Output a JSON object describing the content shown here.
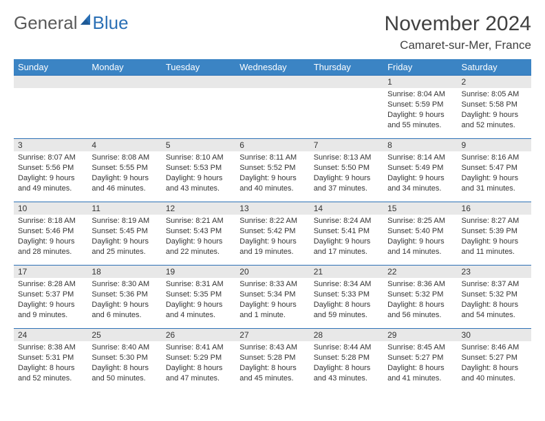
{
  "brand": {
    "part1": "General",
    "part2": "Blue"
  },
  "title": "November 2024",
  "location": "Camaret-sur-Mer, France",
  "colors": {
    "header_bg": "#3b84c4",
    "border": "#2a6fb5",
    "daynum_bg": "#e8e8e8",
    "text": "#333333"
  },
  "weekdays": [
    "Sunday",
    "Monday",
    "Tuesday",
    "Wednesday",
    "Thursday",
    "Friday",
    "Saturday"
  ],
  "weeks": [
    [
      {
        "n": "",
        "sr": "",
        "ss": "",
        "dl": ""
      },
      {
        "n": "",
        "sr": "",
        "ss": "",
        "dl": ""
      },
      {
        "n": "",
        "sr": "",
        "ss": "",
        "dl": ""
      },
      {
        "n": "",
        "sr": "",
        "ss": "",
        "dl": ""
      },
      {
        "n": "",
        "sr": "",
        "ss": "",
        "dl": ""
      },
      {
        "n": "1",
        "sr": "Sunrise: 8:04 AM",
        "ss": "Sunset: 5:59 PM",
        "dl": "Daylight: 9 hours and 55 minutes."
      },
      {
        "n": "2",
        "sr": "Sunrise: 8:05 AM",
        "ss": "Sunset: 5:58 PM",
        "dl": "Daylight: 9 hours and 52 minutes."
      }
    ],
    [
      {
        "n": "3",
        "sr": "Sunrise: 8:07 AM",
        "ss": "Sunset: 5:56 PM",
        "dl": "Daylight: 9 hours and 49 minutes."
      },
      {
        "n": "4",
        "sr": "Sunrise: 8:08 AM",
        "ss": "Sunset: 5:55 PM",
        "dl": "Daylight: 9 hours and 46 minutes."
      },
      {
        "n": "5",
        "sr": "Sunrise: 8:10 AM",
        "ss": "Sunset: 5:53 PM",
        "dl": "Daylight: 9 hours and 43 minutes."
      },
      {
        "n": "6",
        "sr": "Sunrise: 8:11 AM",
        "ss": "Sunset: 5:52 PM",
        "dl": "Daylight: 9 hours and 40 minutes."
      },
      {
        "n": "7",
        "sr": "Sunrise: 8:13 AM",
        "ss": "Sunset: 5:50 PM",
        "dl": "Daylight: 9 hours and 37 minutes."
      },
      {
        "n": "8",
        "sr": "Sunrise: 8:14 AM",
        "ss": "Sunset: 5:49 PM",
        "dl": "Daylight: 9 hours and 34 minutes."
      },
      {
        "n": "9",
        "sr": "Sunrise: 8:16 AM",
        "ss": "Sunset: 5:47 PM",
        "dl": "Daylight: 9 hours and 31 minutes."
      }
    ],
    [
      {
        "n": "10",
        "sr": "Sunrise: 8:18 AM",
        "ss": "Sunset: 5:46 PM",
        "dl": "Daylight: 9 hours and 28 minutes."
      },
      {
        "n": "11",
        "sr": "Sunrise: 8:19 AM",
        "ss": "Sunset: 5:45 PM",
        "dl": "Daylight: 9 hours and 25 minutes."
      },
      {
        "n": "12",
        "sr": "Sunrise: 8:21 AM",
        "ss": "Sunset: 5:43 PM",
        "dl": "Daylight: 9 hours and 22 minutes."
      },
      {
        "n": "13",
        "sr": "Sunrise: 8:22 AM",
        "ss": "Sunset: 5:42 PM",
        "dl": "Daylight: 9 hours and 19 minutes."
      },
      {
        "n": "14",
        "sr": "Sunrise: 8:24 AM",
        "ss": "Sunset: 5:41 PM",
        "dl": "Daylight: 9 hours and 17 minutes."
      },
      {
        "n": "15",
        "sr": "Sunrise: 8:25 AM",
        "ss": "Sunset: 5:40 PM",
        "dl": "Daylight: 9 hours and 14 minutes."
      },
      {
        "n": "16",
        "sr": "Sunrise: 8:27 AM",
        "ss": "Sunset: 5:39 PM",
        "dl": "Daylight: 9 hours and 11 minutes."
      }
    ],
    [
      {
        "n": "17",
        "sr": "Sunrise: 8:28 AM",
        "ss": "Sunset: 5:37 PM",
        "dl": "Daylight: 9 hours and 9 minutes."
      },
      {
        "n": "18",
        "sr": "Sunrise: 8:30 AM",
        "ss": "Sunset: 5:36 PM",
        "dl": "Daylight: 9 hours and 6 minutes."
      },
      {
        "n": "19",
        "sr": "Sunrise: 8:31 AM",
        "ss": "Sunset: 5:35 PM",
        "dl": "Daylight: 9 hours and 4 minutes."
      },
      {
        "n": "20",
        "sr": "Sunrise: 8:33 AM",
        "ss": "Sunset: 5:34 PM",
        "dl": "Daylight: 9 hours and 1 minute."
      },
      {
        "n": "21",
        "sr": "Sunrise: 8:34 AM",
        "ss": "Sunset: 5:33 PM",
        "dl": "Daylight: 8 hours and 59 minutes."
      },
      {
        "n": "22",
        "sr": "Sunrise: 8:36 AM",
        "ss": "Sunset: 5:32 PM",
        "dl": "Daylight: 8 hours and 56 minutes."
      },
      {
        "n": "23",
        "sr": "Sunrise: 8:37 AM",
        "ss": "Sunset: 5:32 PM",
        "dl": "Daylight: 8 hours and 54 minutes."
      }
    ],
    [
      {
        "n": "24",
        "sr": "Sunrise: 8:38 AM",
        "ss": "Sunset: 5:31 PM",
        "dl": "Daylight: 8 hours and 52 minutes."
      },
      {
        "n": "25",
        "sr": "Sunrise: 8:40 AM",
        "ss": "Sunset: 5:30 PM",
        "dl": "Daylight: 8 hours and 50 minutes."
      },
      {
        "n": "26",
        "sr": "Sunrise: 8:41 AM",
        "ss": "Sunset: 5:29 PM",
        "dl": "Daylight: 8 hours and 47 minutes."
      },
      {
        "n": "27",
        "sr": "Sunrise: 8:43 AM",
        "ss": "Sunset: 5:28 PM",
        "dl": "Daylight: 8 hours and 45 minutes."
      },
      {
        "n": "28",
        "sr": "Sunrise: 8:44 AM",
        "ss": "Sunset: 5:28 PM",
        "dl": "Daylight: 8 hours and 43 minutes."
      },
      {
        "n": "29",
        "sr": "Sunrise: 8:45 AM",
        "ss": "Sunset: 5:27 PM",
        "dl": "Daylight: 8 hours and 41 minutes."
      },
      {
        "n": "30",
        "sr": "Sunrise: 8:46 AM",
        "ss": "Sunset: 5:27 PM",
        "dl": "Daylight: 8 hours and 40 minutes."
      }
    ]
  ]
}
